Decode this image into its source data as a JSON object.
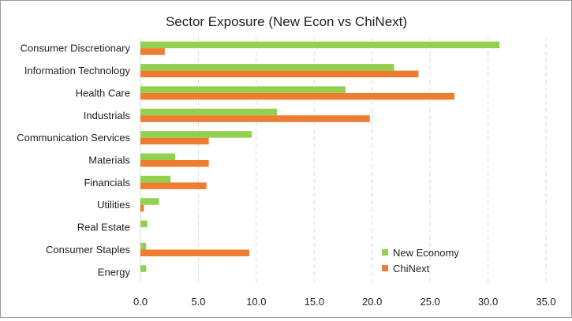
{
  "chart_data": {
    "type": "bar",
    "orientation": "horizontal",
    "title": "Sector Exposure (New Econ vs ChiNext)",
    "xlabel": "",
    "ylabel": "",
    "xlim": [
      0,
      35
    ],
    "x_ticks": [
      "0.0",
      "5.0",
      "10.0",
      "15.0",
      "20.0",
      "25.0",
      "30.0",
      "35.0"
    ],
    "grid": "vertical dashed",
    "legend_position": "bottom-right",
    "categories": [
      "Consumer Discretionary",
      "Information Technology",
      "Health Care",
      "Industrials",
      "Communication Services",
      "Materials",
      "Financials",
      "Utilities",
      "Real Estate",
      "Consumer Staples",
      "Energy"
    ],
    "series": [
      {
        "name": "New Economy",
        "color": "#92d050",
        "values": [
          31.0,
          21.9,
          17.7,
          11.8,
          9.6,
          3.0,
          2.6,
          1.6,
          0.6,
          0.5,
          0.5
        ]
      },
      {
        "name": "ChiNext",
        "color": "#ed7d31",
        "values": [
          2.1,
          24.0,
          27.1,
          19.8,
          5.9,
          5.9,
          5.7,
          0.3,
          0.0,
          9.4,
          0.0
        ]
      }
    ]
  }
}
